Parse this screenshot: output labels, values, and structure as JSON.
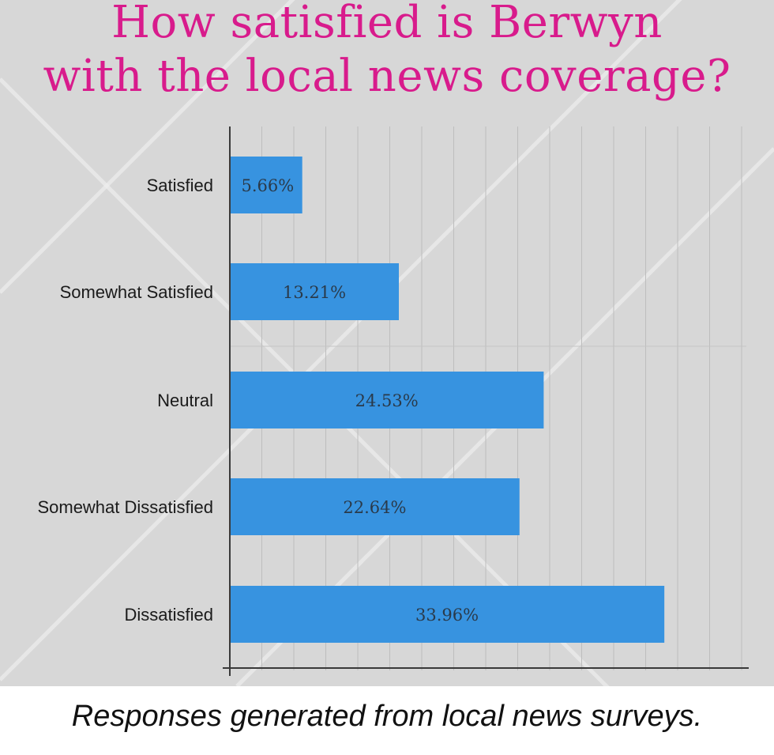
{
  "chart_data": {
    "type": "bar",
    "orientation": "horizontal",
    "title": [
      "How satisfied is Berwyn",
      "with the local news coverage?"
    ],
    "categories": [
      "Satisfied",
      "Somewhat Satisfied",
      "Neutral",
      "Somewhat Dissatisfied",
      "Dissatisfied"
    ],
    "values": [
      5.66,
      13.21,
      24.53,
      22.64,
      33.96
    ],
    "data_labels": [
      "5.66%",
      "13.21%",
      "24.53%",
      "22.64%",
      "33.96%"
    ],
    "xlim": [
      0,
      36
    ],
    "grid": true,
    "bar_color": "#3793e0",
    "title_color": "#d81b8c"
  },
  "caption": "Responses generated from local news surveys."
}
